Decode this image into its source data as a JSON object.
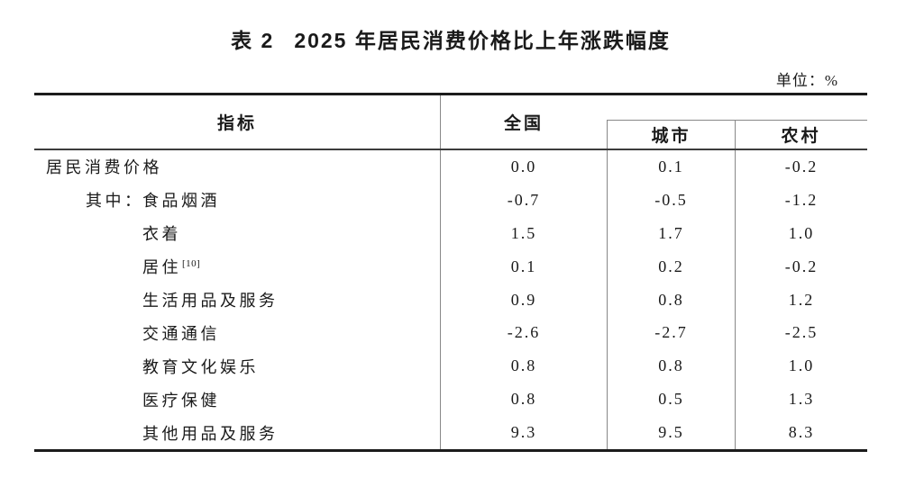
{
  "document": {
    "table_label": "表 2",
    "title": "2025 年居民消费价格比上年涨跌幅度",
    "unit_label": "单位：%",
    "colors": {
      "text": "#1a1a1a",
      "thick_rule": "#1c1c1c",
      "thin_rule": "#888888",
      "background": "#ffffff"
    }
  },
  "table": {
    "columns": {
      "indicator": "指标",
      "national": "全国",
      "urban": "城市",
      "rural": "农村"
    },
    "rows": [
      {
        "prefix": "",
        "label": "居民消费价格",
        "sup": "",
        "national": "0.0",
        "urban": "0.1",
        "rural": "-0.2"
      },
      {
        "prefix": "其中：",
        "label": "食品烟酒",
        "sup": "",
        "national": "-0.7",
        "urban": "-0.5",
        "rural": "-1.2"
      },
      {
        "prefix": "",
        "label": "衣着",
        "sup": "",
        "national": "1.5",
        "urban": "1.7",
        "rural": "1.0"
      },
      {
        "prefix": "",
        "label": "居住",
        "sup": "[10]",
        "national": "0.1",
        "urban": "0.2",
        "rural": "-0.2"
      },
      {
        "prefix": "",
        "label": "生活用品及服务",
        "sup": "",
        "national": "0.9",
        "urban": "0.8",
        "rural": "1.2"
      },
      {
        "prefix": "",
        "label": "交通通信",
        "sup": "",
        "national": "-2.6",
        "urban": "-2.7",
        "rural": "-2.5"
      },
      {
        "prefix": "",
        "label": "教育文化娱乐",
        "sup": "",
        "national": "0.8",
        "urban": "0.8",
        "rural": "1.0"
      },
      {
        "prefix": "",
        "label": "医疗保健",
        "sup": "",
        "national": "0.8",
        "urban": "0.5",
        "rural": "1.3"
      },
      {
        "prefix": "",
        "label": "其他用品及服务",
        "sup": "",
        "national": "9.3",
        "urban": "9.5",
        "rural": "8.3"
      }
    ]
  }
}
